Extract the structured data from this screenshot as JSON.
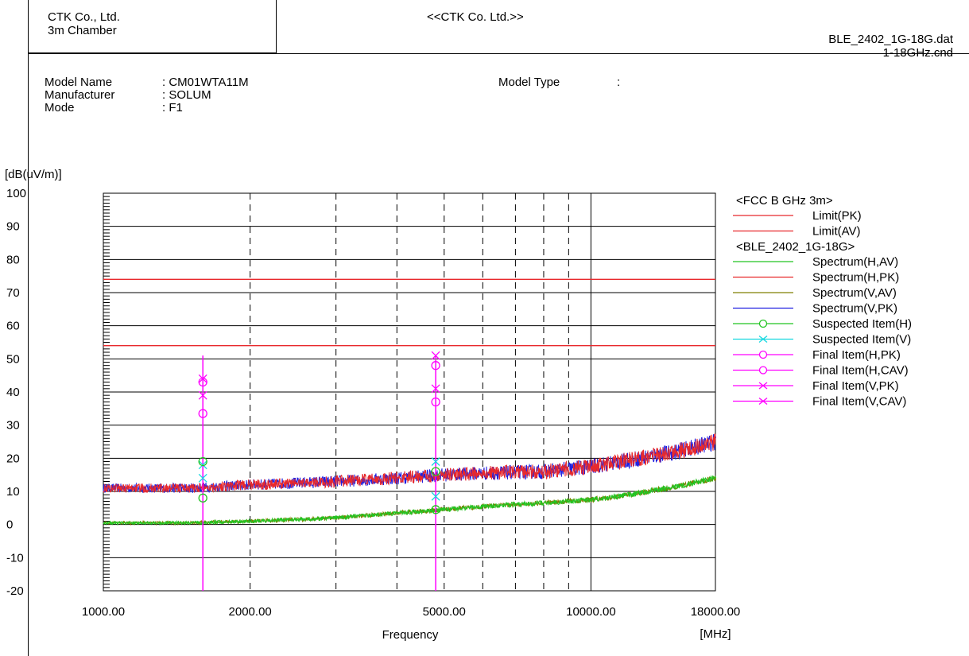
{
  "header": {
    "company": "CTK Co., Ltd.",
    "chamber": "3m Chamber",
    "center_title": "<<CTK Co. Ltd.>>",
    "data_file": "BLE_2402_1G-18G.dat",
    "condition_file": "1-18GHz.cnd"
  },
  "info": {
    "model_name_label": "Model Name",
    "model_name_value": ": CM01WTA11M",
    "manufacturer_label": "Manufacturer",
    "manufacturer_value": ": SOLUM",
    "mode_label": "Mode",
    "mode_value": ": F1",
    "model_type_label": "Model Type",
    "model_type_value": ":"
  },
  "chart_data": {
    "type": "line",
    "ylabel": "[dB(uV/m)]",
    "xlabel": "Frequency",
    "xunit": "[MHz]",
    "xscale": "log",
    "xlim": [
      1000,
      18000
    ],
    "ylim": [
      -20,
      100
    ],
    "yticks": [
      -20,
      -10,
      0,
      10,
      20,
      30,
      40,
      50,
      60,
      70,
      80,
      90,
      100
    ],
    "ytick_labels": [
      "-20",
      "-10",
      "0",
      "10",
      "20",
      "30",
      "40",
      "50",
      "60",
      "70",
      "80",
      "90",
      "100"
    ],
    "xtick_values": [
      1000,
      2000,
      5000,
      10000,
      18000
    ],
    "xtick_labels": [
      "1000.00",
      "2000.00",
      "5000.00",
      "10000.00",
      "18000.00"
    ],
    "minor_gridlines_x": [
      3000,
      4000,
      6000,
      7000,
      8000,
      9000
    ],
    "grid": true,
    "legend_position": "right",
    "legend_groups": [
      {
        "title": "<FCC B GHz 3m>",
        "entries": [
          {
            "label": "Limit(PK)",
            "color": "#e8292c",
            "marker": "none"
          },
          {
            "label": "Limit(AV)",
            "color": "#e8292c",
            "marker": "none"
          }
        ]
      },
      {
        "title": "<BLE_2402_1G-18G>",
        "entries": [
          {
            "label": "Spectrum(H,AV)",
            "color": "#22c422",
            "marker": "none"
          },
          {
            "label": "Spectrum(H,PK)",
            "color": "#e8292c",
            "marker": "none"
          },
          {
            "label": "Spectrum(V,AV)",
            "color": "#7f7f00",
            "marker": "none"
          },
          {
            "label": "Spectrum(V,PK)",
            "color": "#2020e0",
            "marker": "none"
          },
          {
            "label": "Suspected Item(H)",
            "color": "#22c422",
            "marker": "circle"
          },
          {
            "label": "Suspected Item(V)",
            "color": "#16d8e0",
            "marker": "cross"
          },
          {
            "label": "Final Item(H,PK)",
            "color": "#ff00ff",
            "marker": "circle"
          },
          {
            "label": "Final Item(H,CAV)",
            "color": "#ff00ff",
            "marker": "circle"
          },
          {
            "label": "Final Item(V,PK)",
            "color": "#ff00ff",
            "marker": "cross"
          },
          {
            "label": "Final Item(V,CAV)",
            "color": "#ff00ff",
            "marker": "cross"
          }
        ]
      }
    ],
    "limits": [
      {
        "name": "Limit(PK)",
        "value": 74,
        "color": "#e8292c"
      },
      {
        "name": "Limit(AV)",
        "value": 54,
        "color": "#e8292c"
      }
    ],
    "series": [
      {
        "name": "Spectrum(V,PK)",
        "color": "#2020e0",
        "x": [
          1000,
          1500,
          2000,
          3000,
          4000,
          5000,
          6000,
          8000,
          10000,
          12000,
          15000,
          18000
        ],
        "y": [
          11,
          11,
          12,
          13,
          14,
          15,
          15.5,
          16,
          17.5,
          19.5,
          22,
          25
        ]
      },
      {
        "name": "Spectrum(H,PK)",
        "color": "#e8292c",
        "x": [
          1000,
          1500,
          2000,
          3000,
          4000,
          5000,
          6000,
          8000,
          10000,
          12000,
          15000,
          18000
        ],
        "y": [
          11,
          11,
          12,
          13,
          14,
          15,
          15.5,
          16,
          17.5,
          19.5,
          22,
          25
        ]
      },
      {
        "name": "Spectrum(V,AV)",
        "color": "#7f7f00",
        "x": [
          1000,
          1500,
          2000,
          3000,
          4000,
          5000,
          6000,
          8000,
          10000,
          12000,
          15000,
          18000
        ],
        "y": [
          0.5,
          0.5,
          1,
          2,
          3.5,
          4.5,
          5.5,
          6.5,
          7.5,
          9,
          11.5,
          14
        ]
      },
      {
        "name": "Spectrum(H,AV)",
        "color": "#22c422",
        "x": [
          1000,
          1500,
          2000,
          3000,
          4000,
          5000,
          6000,
          8000,
          10000,
          12000,
          15000,
          18000
        ],
        "y": [
          0.5,
          0.5,
          1,
          2,
          3.5,
          4.5,
          5.5,
          6.5,
          7.5,
          9,
          11.5,
          14
        ]
      }
    ],
    "markers": [
      {
        "name": "Final Item(V,PK)",
        "marker": "cross",
        "color": "#ff00ff",
        "x": 1600,
        "y": 44
      },
      {
        "name": "Final Item(H,PK)",
        "marker": "circle",
        "color": "#ff00ff",
        "x": 1600,
        "y": 43
      },
      {
        "name": "Final Item(V,CAV)",
        "marker": "cross",
        "color": "#ff00ff",
        "x": 1600,
        "y": 39
      },
      {
        "name": "Final Item(H,CAV)",
        "marker": "circle",
        "color": "#ff00ff",
        "x": 1600,
        "y": 33.5
      },
      {
        "name": "Suspected Item(V)",
        "marker": "cross",
        "color": "#16d8e0",
        "x": 1600,
        "y": 18
      },
      {
        "name": "Suspected Item(H)",
        "marker": "circle",
        "color": "#22c422",
        "x": 1600,
        "y": 19
      },
      {
        "name": "Suspected Item(V)",
        "marker": "cross",
        "color": "#16d8e0",
        "x": 1600,
        "y": 14
      },
      {
        "name": "Suspected Item(H)",
        "marker": "circle",
        "color": "#22c422",
        "x": 1600,
        "y": 8
      },
      {
        "name": "Final Item(V,PK)",
        "marker": "cross",
        "color": "#ff00ff",
        "x": 4804,
        "y": 51
      },
      {
        "name": "Final Item(H,PK)",
        "marker": "circle",
        "color": "#ff00ff",
        "x": 4804,
        "y": 48
      },
      {
        "name": "Final Item(V,CAV)",
        "marker": "cross",
        "color": "#ff00ff",
        "x": 4804,
        "y": 41
      },
      {
        "name": "Final Item(H,CAV)",
        "marker": "circle",
        "color": "#ff00ff",
        "x": 4804,
        "y": 37
      },
      {
        "name": "Suspected Item(V)",
        "marker": "cross",
        "color": "#16d8e0",
        "x": 4804,
        "y": 19
      },
      {
        "name": "Suspected Item(H)",
        "marker": "circle",
        "color": "#22c422",
        "x": 4804,
        "y": 16
      },
      {
        "name": "Suspected Item(V)",
        "marker": "cross",
        "color": "#16d8e0",
        "x": 4804,
        "y": 8.5
      },
      {
        "name": "Suspected Item(H)",
        "marker": "circle",
        "color": "#22c422",
        "x": 4804,
        "y": 4.5
      }
    ],
    "final_item_lines": [
      {
        "x": 1600,
        "color": "#ff00ff"
      },
      {
        "x": 4804,
        "color": "#ff00ff"
      }
    ]
  }
}
